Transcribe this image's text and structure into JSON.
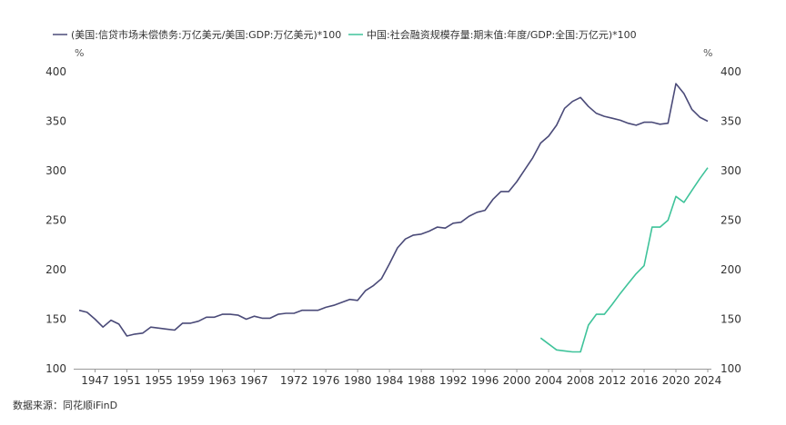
{
  "chart_data": {
    "type": "line",
    "title": "",
    "left_unit": "%",
    "right_unit": "%",
    "ylim": [
      100,
      400
    ],
    "yticks": [
      100,
      150,
      200,
      250,
      300,
      350,
      400
    ],
    "xlim": [
      1944,
      2025
    ],
    "xticks": [
      1947,
      1951,
      1955,
      1959,
      1963,
      1967,
      1972,
      1976,
      1980,
      1984,
      1988,
      1992,
      1996,
      2000,
      2004,
      2008,
      2012,
      2016,
      2020,
      2024
    ],
    "source": "数据来源：同花顺iFinD",
    "series": [
      {
        "name": "(美国:信贷市场未偿债务:万亿美元/美国:GDP:万亿美元)*100",
        "color": "#4a4a78",
        "axis": "left",
        "x": [
          1945,
          1946,
          1947,
          1948,
          1949,
          1950,
          1951,
          1952,
          1953,
          1954,
          1955,
          1956,
          1957,
          1958,
          1959,
          1960,
          1961,
          1962,
          1963,
          1964,
          1965,
          1966,
          1967,
          1968,
          1969,
          1970,
          1971,
          1972,
          1973,
          1974,
          1975,
          1976,
          1977,
          1978,
          1979,
          1980,
          1981,
          1982,
          1983,
          1984,
          1985,
          1986,
          1987,
          1988,
          1989,
          1990,
          1991,
          1992,
          1993,
          1994,
          1995,
          1996,
          1997,
          1998,
          1999,
          2000,
          2001,
          2002,
          2003,
          2004,
          2005,
          2006,
          2007,
          2008,
          2009,
          2010,
          2011,
          2012,
          2013,
          2014,
          2015,
          2016,
          2017,
          2018,
          2019,
          2020,
          2021,
          2022,
          2023,
          2024
        ],
        "values": [
          159,
          157,
          150,
          142,
          149,
          145,
          133,
          135,
          136,
          142,
          141,
          140,
          139,
          146,
          146,
          148,
          152,
          152,
          155,
          155,
          154,
          150,
          153,
          151,
          151,
          155,
          156,
          156,
          159,
          159,
          159,
          162,
          164,
          167,
          170,
          169,
          179,
          184,
          191,
          206,
          222,
          231,
          235,
          236,
          239,
          243,
          242,
          247,
          248,
          254,
          258,
          260,
          271,
          279,
          279,
          289,
          301,
          313,
          328,
          335,
          346,
          363,
          370,
          374,
          365,
          358,
          355,
          353,
          351,
          348,
          346,
          349,
          349,
          347,
          348,
          388,
          378,
          362,
          354,
          350
        ]
      },
      {
        "name": "中国:社会融资规模存量:期末值:年度/GDP:全国:万亿元)*100",
        "color": "#3fc39a",
        "axis": "right",
        "x": [
          2003,
          2004,
          2005,
          2006,
          2007,
          2008,
          2009,
          2010,
          2011,
          2012,
          2013,
          2014,
          2015,
          2016,
          2017,
          2018,
          2019,
          2020,
          2021,
          2022,
          2023,
          2024
        ],
        "values": [
          131,
          125,
          119,
          118,
          117,
          117,
          144,
          155,
          155,
          165,
          176,
          186,
          196,
          204,
          243,
          243,
          250,
          274,
          268,
          280,
          292,
          303
        ]
      }
    ]
  }
}
